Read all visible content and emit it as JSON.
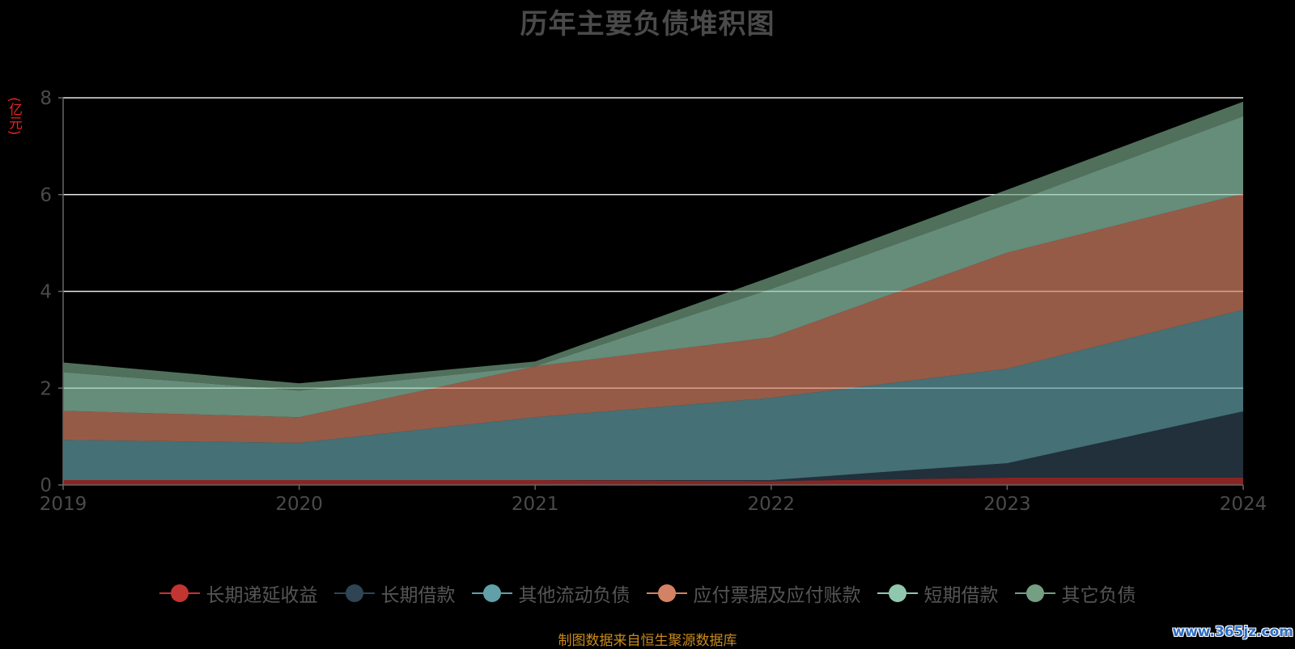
{
  "chart_data": {
    "type": "area",
    "stacked": true,
    "title": "历年主要负债堆积图",
    "ylabel": "(亿元)",
    "xlabel": "",
    "categories": [
      "2019",
      "2020",
      "2021",
      "2022",
      "2023",
      "2024"
    ],
    "ylim": [
      0,
      8
    ],
    "yticks": [
      0,
      2,
      4,
      6,
      8
    ],
    "grid": true,
    "legend_position": "bottom",
    "series": [
      {
        "name": "长期递延收益",
        "color": "#c23531",
        "values": [
          0.1,
          0.1,
          0.1,
          0.08,
          0.15,
          0.15
        ]
      },
      {
        "name": "长期借款",
        "color": "#2f4554",
        "values": [
          0,
          0,
          0,
          0.02,
          0.3,
          1.37
        ]
      },
      {
        "name": "其他流动负债",
        "color": "#61a0a8",
        "values": [
          0.83,
          0.77,
          1.3,
          1.7,
          1.95,
          2.1
        ]
      },
      {
        "name": "应付票据及应付账款",
        "color": "#d48265",
        "values": [
          0.6,
          0.53,
          1.05,
          1.25,
          2.4,
          2.4
        ]
      },
      {
        "name": "短期借款",
        "color": "#91c7ae",
        "values": [
          0.8,
          0.55,
          0,
          1.0,
          1.0,
          1.6
        ]
      },
      {
        "name": "其它负债",
        "color": "#749f83",
        "values": [
          0.2,
          0.15,
          0.1,
          0.25,
          0.3,
          0.3
        ]
      }
    ]
  },
  "source_note": "制图数据来自恒生聚源数据库",
  "watermark": "www.365jz.com"
}
